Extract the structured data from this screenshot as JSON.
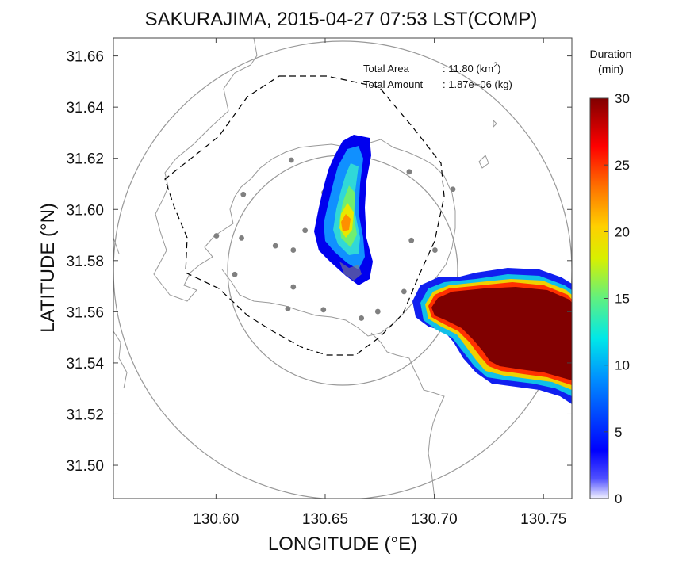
{
  "title": "SAKURAJIMA, 2015-04-27 07:53 LST(COMP)",
  "xlabel": "LONGITUDE (°E)",
  "ylabel": "LATITUDE (°N)",
  "x_ticks": [
    "130.60",
    "130.65",
    "130.70",
    "130.75"
  ],
  "x_tick_values": [
    130.6,
    130.65,
    130.7,
    130.75
  ],
  "y_ticks": [
    "31.66",
    "31.64",
    "31.62",
    "31.60",
    "31.58",
    "31.56",
    "31.54",
    "31.52",
    "31.50"
  ],
  "y_tick_values": [
    31.66,
    31.64,
    31.62,
    31.6,
    31.58,
    31.56,
    31.54,
    31.52,
    31.5
  ],
  "xlim": [
    130.553,
    130.763
  ],
  "ylim": [
    31.487,
    31.667
  ],
  "info": {
    "area_label": "Total Area",
    "area_value": ": 11.80 (km",
    "area_sup": "2",
    "area_close": ")",
    "amount_label": "Total Amount",
    "amount_value": ": 1.87e+06 (kg)"
  },
  "colorbar": {
    "title_line1": "Duration",
    "title_line2": "(min)",
    "ticks": [
      "30",
      "25",
      "20",
      "15",
      "10",
      "5",
      "0"
    ],
    "tick_values": [
      30,
      25,
      20,
      15,
      10,
      5,
      0
    ],
    "range": [
      0,
      30
    ],
    "colormap": "jet"
  },
  "colors": {
    "plume_core": "#800000",
    "circles": "#999999",
    "coastline": "#999999",
    "stations": "#808080",
    "boundary": "#000000"
  },
  "stations": [
    [
      130.6345,
      31.6193
    ],
    [
      130.6125,
      31.6059
    ],
    [
      130.6495,
      31.6066
    ],
    [
      130.6885,
      31.6147
    ],
    [
      130.7085,
      31.6079
    ],
    [
      130.6002,
      31.5897
    ],
    [
      130.6117,
      31.5888
    ],
    [
      130.6272,
      31.5858
    ],
    [
      130.6408,
      31.5918
    ],
    [
      130.6354,
      31.5841
    ],
    [
      130.6895,
      31.5879
    ],
    [
      130.7003,
      31.5841
    ],
    [
      130.6086,
      31.5746
    ],
    [
      130.6662,
      31.5739
    ],
    [
      130.6354,
      31.5697
    ],
    [
      130.6861,
      31.5679
    ],
    [
      130.6329,
      31.5612
    ],
    [
      130.6492,
      31.5608
    ],
    [
      130.6741,
      31.5601
    ],
    [
      130.6666,
      31.5575
    ]
  ]
}
